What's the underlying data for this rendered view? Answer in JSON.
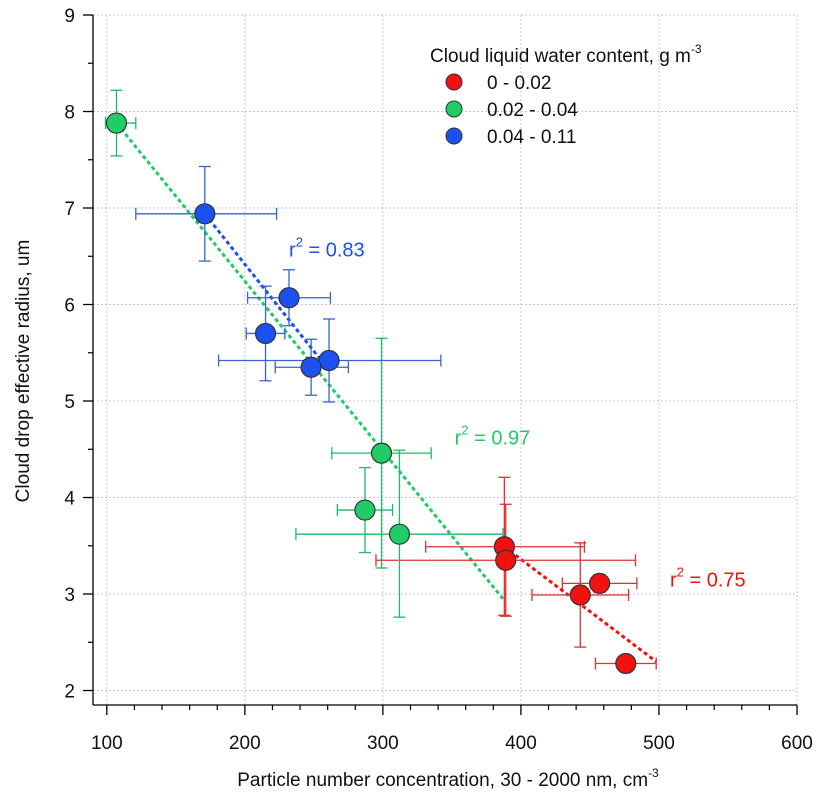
{
  "chart_data": {
    "type": "scatter",
    "xlabel": "Particle number concentration, 30 - 2000 nm, cm",
    "xlabel_sup": "-3",
    "ylabel": "Cloud drop effective radius, um",
    "xlim": [
      90,
      600
    ],
    "ylim": [
      1.85,
      9
    ],
    "xticks": [
      100,
      200,
      300,
      400,
      500,
      600
    ],
    "yticks": [
      2,
      3,
      4,
      5,
      6,
      7,
      8,
      9
    ],
    "grid": true,
    "legend": {
      "position": "top-right",
      "title": "Cloud liquid water content, g m",
      "title_sup": "-3"
    },
    "series": [
      {
        "name": "0 - 0.02",
        "color": "#f21010",
        "err_color": "#e03030",
        "points": [
          {
            "x": 388,
            "y": 3.49,
            "xerr": [
              331,
              446
            ],
            "yerr": [
              2.78,
              4.21
            ]
          },
          {
            "x": 389,
            "y": 3.35,
            "xerr": [
              295,
              483
            ],
            "yerr": [
              2.77,
              3.93
            ]
          },
          {
            "x": 457,
            "y": 3.11,
            "xerr": [
              430,
              484
            ],
            "yerr": [
              3.02,
              3.2
            ]
          },
          {
            "x": 443,
            "y": 2.99,
            "xerr": [
              408,
              478
            ],
            "yerr": [
              2.45,
              3.53
            ]
          },
          {
            "x": 476,
            "y": 2.28,
            "xerr": [
              454,
              498
            ],
            "yerr": [
              2.28,
              2.28
            ]
          }
        ],
        "fit": {
          "x": [
            388,
            498
          ],
          "y": [
            3.49,
            2.3
          ]
        },
        "r2_label": "0.75"
      },
      {
        "name": "0.02 - 0.04",
        "color": "#1fcc66",
        "err_color": "#22b865",
        "points": [
          {
            "x": 107,
            "y": 7.88,
            "xerr": [
              99,
              121
            ],
            "yerr": [
              7.54,
              8.22
            ]
          },
          {
            "x": 299,
            "y": 4.46,
            "xerr": [
              263,
              335
            ],
            "yerr": [
              3.27,
              5.65
            ]
          },
          {
            "x": 287,
            "y": 3.87,
            "xerr": [
              267,
              307
            ],
            "yerr": [
              3.43,
              4.31
            ]
          },
          {
            "x": 312,
            "y": 3.62,
            "xerr": [
              237,
              387
            ],
            "yerr": [
              2.76,
              4.49
            ]
          }
        ],
        "fit": {
          "x": [
            107,
            387
          ],
          "y": [
            7.88,
            2.95
          ]
        },
        "r2_label": "0.97"
      },
      {
        "name": "0.04 - 0.11",
        "color": "#1c50f0",
        "err_color": "#3565d0",
        "points": [
          {
            "x": 171,
            "y": 6.94,
            "xerr": [
              121,
              223
            ],
            "yerr": [
              6.45,
              7.43
            ]
          },
          {
            "x": 232,
            "y": 6.07,
            "xerr": [
              202,
              262
            ],
            "yerr": [
              5.78,
              6.36
            ]
          },
          {
            "x": 215,
            "y": 5.7,
            "xerr": [
              201,
              229
            ],
            "yerr": [
              5.21,
              6.19
            ]
          },
          {
            "x": 261,
            "y": 5.42,
            "xerr": [
              181,
              342
            ],
            "yerr": [
              4.99,
              5.85
            ]
          },
          {
            "x": 248,
            "y": 5.35,
            "xerr": [
              222,
              275
            ],
            "yerr": [
              5.06,
              5.64
            ]
          }
        ],
        "fit": {
          "x": [
            171,
            262
          ],
          "y": [
            6.94,
            5.3
          ]
        },
        "r2_label": "0.83"
      }
    ],
    "annotations": [
      {
        "series": 2,
        "prefix": "r",
        "sup": "2",
        "value": " = 0.83",
        "x": 232,
        "y": 6.5
      },
      {
        "series": 1,
        "prefix": "r",
        "sup": "2",
        "value": " = 0.97",
        "x": 352,
        "y": 4.55
      },
      {
        "series": 0,
        "prefix": "r",
        "sup": "2",
        "value": " = 0.75",
        "x": 508,
        "y": 3.08
      }
    ]
  }
}
